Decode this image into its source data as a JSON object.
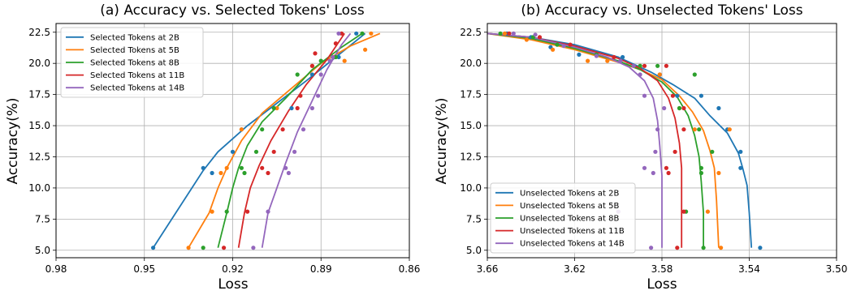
{
  "chart_data": [
    {
      "type": "line",
      "title": "(a) Accuracy vs. Selected Tokens' Loss",
      "xlabel": "Loss",
      "ylabel": "Accuracy(%)",
      "xlim": [
        0.98,
        0.86
      ],
      "ylim": [
        4.4,
        23.2
      ],
      "x_inverted": true,
      "grid": true,
      "legend_position": "upper-left",
      "xticks": [
        "0.98",
        "0.95",
        "0.92",
        "0.89",
        "0.86"
      ],
      "yticks": [
        "5.0",
        "7.5",
        "10.0",
        "12.5",
        "15.0",
        "17.5",
        "20.0",
        "22.5"
      ],
      "series": [
        {
          "name": "Selected Tokens at 2B",
          "color": "#1f77b4",
          "line": [
            [
              0.947,
              5.2
            ],
            [
              0.93,
              11.4
            ],
            [
              0.925,
              12.9
            ],
            [
              0.915,
              15.0
            ],
            [
              0.905,
              16.8
            ],
            [
              0.895,
              18.6
            ],
            [
              0.885,
              20.5
            ],
            [
              0.875,
              22.4
            ]
          ],
          "points": [
            [
              0.947,
              5.2
            ],
            [
              0.93,
              11.6
            ],
            [
              0.927,
              11.2
            ],
            [
              0.92,
              12.9
            ],
            [
              0.917,
              14.7
            ],
            [
              0.9,
              16.4
            ],
            [
              0.893,
              19.1
            ],
            [
              0.884,
              20.5
            ],
            [
              0.878,
              22.4
            ]
          ]
        },
        {
          "name": "Selected Tokens at 5B",
          "color": "#ff7f0e",
          "line": [
            [
              0.935,
              5.2
            ],
            [
              0.928,
              8.0
            ],
            [
              0.925,
              10.0
            ],
            [
              0.922,
              11.6
            ],
            [
              0.917,
              13.8
            ],
            [
              0.91,
              16.0
            ],
            [
              0.9,
              18.0
            ],
            [
              0.89,
              20.0
            ],
            [
              0.88,
              21.4
            ],
            [
              0.87,
              22.4
            ]
          ],
          "points": [
            [
              0.935,
              5.2
            ],
            [
              0.927,
              8.1
            ],
            [
              0.924,
              11.2
            ],
            [
              0.922,
              11.6
            ],
            [
              0.917,
              14.7
            ],
            [
              0.905,
              16.4
            ],
            [
              0.893,
              19.8
            ],
            [
              0.882,
              20.2
            ],
            [
              0.875,
              21.1
            ],
            [
              0.873,
              22.4
            ]
          ]
        },
        {
          "name": "Selected Tokens at 8B",
          "color": "#2ca02c",
          "line": [
            [
              0.925,
              5.2
            ],
            [
              0.922,
              8.0
            ],
            [
              0.92,
              10.0
            ],
            [
              0.918,
              11.6
            ],
            [
              0.915,
              13.4
            ],
            [
              0.91,
              15.3
            ],
            [
              0.902,
              17.2
            ],
            [
              0.893,
              19.5
            ],
            [
              0.883,
              21.3
            ],
            [
              0.876,
              22.4
            ]
          ],
          "points": [
            [
              0.93,
              5.2
            ],
            [
              0.922,
              8.1
            ],
            [
              0.917,
              11.6
            ],
            [
              0.916,
              11.2
            ],
            [
              0.912,
              12.9
            ],
            [
              0.91,
              14.7
            ],
            [
              0.906,
              16.4
            ],
            [
              0.898,
              19.1
            ],
            [
              0.89,
              20.2
            ],
            [
              0.885,
              20.5
            ],
            [
              0.876,
              22.4
            ]
          ]
        },
        {
          "name": "Selected Tokens at 11B",
          "color": "#d62728",
          "line": [
            [
              0.918,
              5.2
            ],
            [
              0.916,
              8.0
            ],
            [
              0.914,
              10.0
            ],
            [
              0.911,
              11.8
            ],
            [
              0.907,
              13.8
            ],
            [
              0.901,
              16.2
            ],
            [
              0.895,
              18.3
            ],
            [
              0.888,
              20.3
            ],
            [
              0.882,
              22.4
            ]
          ],
          "points": [
            [
              0.923,
              5.2
            ],
            [
              0.915,
              8.1
            ],
            [
              0.91,
              11.6
            ],
            [
              0.908,
              11.2
            ],
            [
              0.906,
              12.9
            ],
            [
              0.903,
              14.7
            ],
            [
              0.898,
              16.4
            ],
            [
              0.897,
              17.4
            ],
            [
              0.893,
              19.8
            ],
            [
              0.892,
              20.8
            ],
            [
              0.885,
              21.6
            ],
            [
              0.883,
              22.4
            ]
          ]
        },
        {
          "name": "Selected Tokens at 14B",
          "color": "#9467bd",
          "line": [
            [
              0.91,
              5.2
            ],
            [
              0.908,
              8.0
            ],
            [
              0.905,
              10.0
            ],
            [
              0.902,
              12.0
            ],
            [
              0.898,
              14.5
            ],
            [
              0.893,
              17.0
            ],
            [
              0.888,
              19.5
            ],
            [
              0.883,
              21.5
            ],
            [
              0.88,
              22.4
            ]
          ],
          "points": [
            [
              0.913,
              5.2
            ],
            [
              0.908,
              8.1
            ],
            [
              0.902,
              11.6
            ],
            [
              0.901,
              11.2
            ],
            [
              0.899,
              12.9
            ],
            [
              0.896,
              14.7
            ],
            [
              0.893,
              16.4
            ],
            [
              0.891,
              17.4
            ],
            [
              0.89,
              19.1
            ],
            [
              0.887,
              20.2
            ],
            [
              0.886,
              20.5
            ],
            [
              0.884,
              22.4
            ]
          ]
        }
      ]
    },
    {
      "type": "line",
      "title": "(b) Accuracy vs. Unselected Tokens' Loss",
      "xlabel": "Loss",
      "ylabel": "Accuracy(%)",
      "xlim": [
        3.66,
        3.5
      ],
      "ylim": [
        4.4,
        23.2
      ],
      "x_inverted": true,
      "grid": true,
      "legend_position": "lower-left",
      "xticks": [
        "3.66",
        "3.62",
        "3.58",
        "3.54",
        "3.50"
      ],
      "yticks": [
        "5.0",
        "7.5",
        "10.0",
        "12.5",
        "15.0",
        "17.5",
        "20.0",
        "22.5"
      ],
      "series": [
        {
          "name": "Unselected Tokens at 2B",
          "color": "#1f77b4",
          "line": [
            [
              3.66,
              22.4
            ],
            [
              3.64,
              22.1
            ],
            [
              3.62,
              21.5
            ],
            [
              3.6,
              20.5
            ],
            [
              3.585,
              19.3
            ],
            [
              3.575,
              18.3
            ],
            [
              3.565,
              17.2
            ],
            [
              3.558,
              15.8
            ],
            [
              3.55,
              14.4
            ],
            [
              3.545,
              12.8
            ],
            [
              3.543,
              11.6
            ],
            [
              3.541,
              10.2
            ],
            [
              3.54,
              8.0
            ],
            [
              3.539,
              5.2
            ]
          ],
          "points": [
            [
              3.651,
              22.4
            ],
            [
              3.64,
              22.1
            ],
            [
              3.631,
              21.3
            ],
            [
              3.618,
              20.7
            ],
            [
              3.598,
              20.5
            ],
            [
              3.581,
              19.1
            ],
            [
              3.573,
              17.4
            ],
            [
              3.562,
              17.4
            ],
            [
              3.554,
              16.4
            ],
            [
              3.55,
              14.7
            ],
            [
              3.544,
              12.9
            ],
            [
              3.544,
              11.6
            ],
            [
              3.535,
              5.2
            ]
          ]
        },
        {
          "name": "Unselected Tokens at 5B",
          "color": "#ff7f0e",
          "line": [
            [
              3.66,
              22.4
            ],
            [
              3.64,
              21.9
            ],
            [
              3.62,
              21.1
            ],
            [
              3.6,
              20.1
            ],
            [
              3.59,
              19.5
            ],
            [
              3.58,
              18.7
            ],
            [
              3.572,
              17.4
            ],
            [
              3.566,
              16.1
            ],
            [
              3.561,
              14.6
            ],
            [
              3.558,
              13.0
            ],
            [
              3.556,
              11.6
            ],
            [
              3.555,
              9.0
            ],
            [
              3.554,
              5.2
            ]
          ],
          "points": [
            [
              3.652,
              22.4
            ],
            [
              3.642,
              21.9
            ],
            [
              3.63,
              21.1
            ],
            [
              3.614,
              20.2
            ],
            [
              3.605,
              20.2
            ],
            [
              3.59,
              19.8
            ],
            [
              3.581,
              19.1
            ],
            [
              3.572,
              16.4
            ],
            [
              3.565,
              14.7
            ],
            [
              3.549,
              14.7
            ],
            [
              3.554,
              11.2
            ],
            [
              3.559,
              8.1
            ],
            [
              3.553,
              5.2
            ]
          ]
        },
        {
          "name": "Unselected Tokens at 8B",
          "color": "#2ca02c",
          "line": [
            [
              3.66,
              22.4
            ],
            [
              3.64,
              22.0
            ],
            [
              3.62,
              21.2
            ],
            [
              3.6,
              20.2
            ],
            [
              3.59,
              19.5
            ],
            [
              3.58,
              18.5
            ],
            [
              3.573,
              17.3
            ],
            [
              3.568,
              15.8
            ],
            [
              3.565,
              14.2
            ],
            [
              3.563,
              12.5
            ],
            [
              3.562,
              10.5
            ],
            [
              3.561,
              8.0
            ],
            [
              3.561,
              5.2
            ]
          ],
          "points": [
            [
              3.654,
              22.4
            ],
            [
              3.639,
              22.1
            ],
            [
              3.628,
              21.5
            ],
            [
              3.61,
              20.7
            ],
            [
              3.59,
              19.8
            ],
            [
              3.582,
              19.8
            ],
            [
              3.565,
              19.1
            ],
            [
              3.572,
              16.4
            ],
            [
              3.563,
              14.7
            ],
            [
              3.557,
              12.9
            ],
            [
              3.562,
              11.6
            ],
            [
              3.562,
              11.2
            ],
            [
              3.569,
              8.1
            ],
            [
              3.561,
              5.2
            ]
          ]
        },
        {
          "name": "Unselected Tokens at 11B",
          "color": "#d62728",
          "line": [
            [
              3.66,
              22.4
            ],
            [
              3.64,
              22.1
            ],
            [
              3.62,
              21.4
            ],
            [
              3.6,
              20.4
            ],
            [
              3.59,
              19.6
            ],
            [
              3.582,
              18.6
            ],
            [
              3.577,
              17.2
            ],
            [
              3.574,
              15.6
            ],
            [
              3.572,
              13.6
            ],
            [
              3.571,
              11.6
            ],
            [
              3.571,
              9.0
            ],
            [
              3.571,
              5.2
            ]
          ],
          "points": [
            [
              3.65,
              22.4
            ],
            [
              3.636,
              22.1
            ],
            [
              3.622,
              21.5
            ],
            [
              3.602,
              20.5
            ],
            [
              3.588,
              19.8
            ],
            [
              3.578,
              19.8
            ],
            [
              3.575,
              17.4
            ],
            [
              3.57,
              16.4
            ],
            [
              3.57,
              14.7
            ],
            [
              3.574,
              12.9
            ],
            [
              3.578,
              11.6
            ],
            [
              3.577,
              11.2
            ],
            [
              3.57,
              8.1
            ],
            [
              3.573,
              5.2
            ]
          ]
        },
        {
          "name": "Unselected Tokens at 14B",
          "color": "#9467bd",
          "line": [
            [
              3.66,
              22.4
            ],
            [
              3.64,
              22.1
            ],
            [
              3.62,
              21.3
            ],
            [
              3.605,
              20.5
            ],
            [
              3.595,
              19.7
            ],
            [
              3.588,
              18.6
            ],
            [
              3.584,
              17.2
            ],
            [
              3.582,
              15.4
            ],
            [
              3.581,
              13.4
            ],
            [
              3.58,
              11.0
            ],
            [
              3.58,
              8.0
            ],
            [
              3.58,
              5.2
            ]
          ],
          "points": [
            [
              3.648,
              22.4
            ],
            [
              3.638,
              22.3
            ],
            [
              3.625,
              21.4
            ],
            [
              3.61,
              20.6
            ],
            [
              3.599,
              20.2
            ],
            [
              3.593,
              19.8
            ],
            [
              3.59,
              19.1
            ],
            [
              3.588,
              17.4
            ],
            [
              3.579,
              16.4
            ],
            [
              3.582,
              14.7
            ],
            [
              3.583,
              12.9
            ],
            [
              3.588,
              11.6
            ],
            [
              3.584,
              11.2
            ],
            [
              3.6,
              8.1
            ],
            [
              3.585,
              5.2
            ]
          ]
        }
      ]
    }
  ]
}
